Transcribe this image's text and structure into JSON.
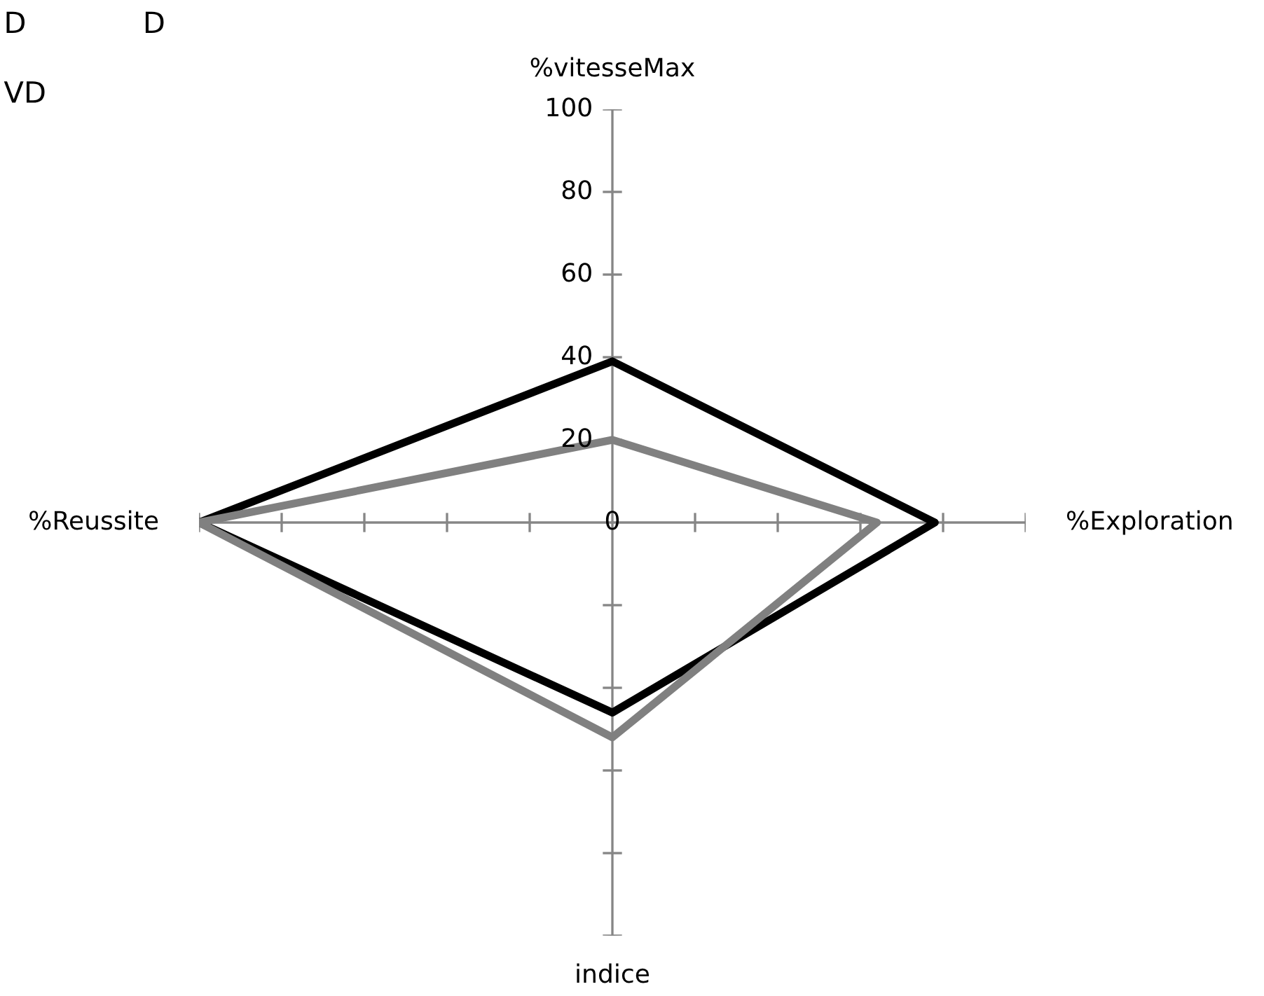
{
  "chart_data": {
    "type": "radar",
    "categories": [
      "%vitesseMax",
      "%Exploration",
      "indice",
      "%Reussite"
    ],
    "series": [
      {
        "color": "#000000",
        "values": [
          39,
          78,
          46,
          100
        ]
      },
      {
        "color": "#808080",
        "values": [
          20,
          64,
          52,
          100
        ]
      }
    ],
    "ylim": [
      0,
      100
    ],
    "yticks": [
      0,
      20,
      40,
      60,
      80,
      100
    ],
    "annotations": [
      "D",
      "D",
      "VD"
    ]
  }
}
